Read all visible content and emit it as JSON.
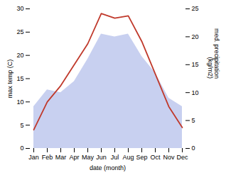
{
  "chart_data": {
    "type": "line",
    "xlabel": "date (month)",
    "ylabel": "max temp (C)",
    "y2label": "med. precipitation\n(kg/m2)",
    "categories": [
      "Jan",
      "Feb",
      "Mar",
      "Apr",
      "May",
      "Jun",
      "Jul",
      "Aug",
      "Sep",
      "Oct",
      "Nov",
      "Dec"
    ],
    "series": [
      {
        "type": "area",
        "axis": "y2",
        "color": "#c8d0f0",
        "values": [
          7.5,
          10.5,
          10.0,
          12.0,
          16.0,
          20.5,
          20.0,
          20.5,
          16.5,
          13.5,
          9.0,
          7.5
        ]
      },
      {
        "type": "line",
        "color": "#c0392b",
        "values": [
          4.0,
          10.0,
          13.5,
          18.0,
          22.5,
          29.0,
          28.0,
          28.5,
          23.0,
          16.0,
          9.0,
          4.5
        ]
      }
    ],
    "ylim": [
      0,
      30
    ],
    "yticks": [
      0,
      5,
      10,
      15,
      20,
      25,
      30
    ],
    "y2lim": [
      0,
      25
    ],
    "y2ticks": [
      0,
      5,
      10,
      15,
      20,
      25
    ],
    "grid": false
  }
}
